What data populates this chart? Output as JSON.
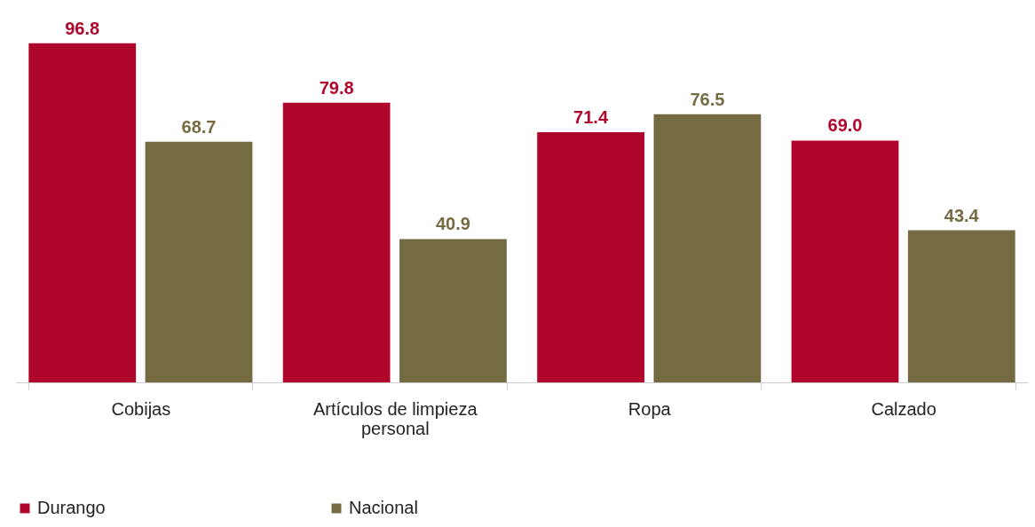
{
  "chart_data": {
    "type": "bar",
    "categories": [
      "Cobijas",
      "Artículos de limpieza personal",
      "Ropa",
      "Calzado"
    ],
    "series": [
      {
        "name": "Durango",
        "color": "#b0062c",
        "values": [
          96.8,
          79.8,
          71.4,
          69.0
        ],
        "value_labels": [
          "96.8",
          "79.8",
          "71.4",
          "69.0"
        ]
      },
      {
        "name": "Nacional",
        "color": "#756b43",
        "values": [
          68.7,
          40.9,
          76.5,
          43.4
        ],
        "value_labels": [
          "68.7",
          "40.9",
          "76.5",
          "43.4"
        ]
      }
    ],
    "legend": "bottom"
  }
}
